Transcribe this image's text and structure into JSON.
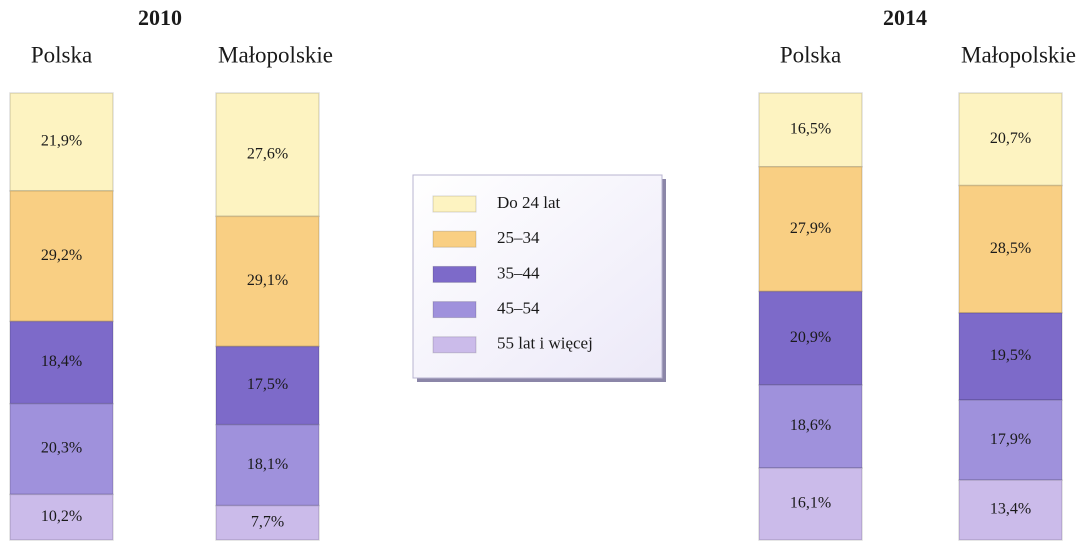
{
  "chart_data": [
    {
      "type": "bar",
      "stacked": true,
      "title": "2010",
      "categories": [
        "Polska",
        "Małopolskie"
      ],
      "series": [
        {
          "name": "Do 24 lat",
          "color": "#fdf3c1",
          "values": [
            21.9,
            27.6
          ],
          "value_labels": [
            "21,9%",
            "27,6%"
          ]
        },
        {
          "name": "25–34",
          "color": "#f9cf83",
          "values": [
            29.2,
            29.1
          ],
          "value_labels": [
            "29,2%",
            "29,1%"
          ]
        },
        {
          "name": "35–44",
          "color": "#7d6ac9",
          "values": [
            18.4,
            17.5
          ],
          "value_labels": [
            "18,4%",
            "17,5%"
          ]
        },
        {
          "name": "45–54",
          "color": "#9f91dc",
          "values": [
            20.3,
            18.1
          ],
          "value_labels": [
            "20,3%",
            "18,1%"
          ]
        },
        {
          "name": "55 lat i więcej",
          "color": "#cbbbea",
          "values": [
            10.2,
            7.7
          ],
          "value_labels": [
            "10,2%",
            "7,7%"
          ]
        }
      ]
    },
    {
      "type": "bar",
      "stacked": true,
      "title": "2014",
      "categories": [
        "Polska",
        "Małopolskie"
      ],
      "series": [
        {
          "name": "Do 24 lat",
          "color": "#fdf3c1",
          "values": [
            16.5,
            20.7
          ],
          "value_labels": [
            "16,5%",
            "20,7%"
          ]
        },
        {
          "name": "25–34",
          "color": "#f9cf83",
          "values": [
            27.9,
            28.5
          ],
          "value_labels": [
            "27,9%",
            "28,5%"
          ]
        },
        {
          "name": "35–44",
          "color": "#7d6ac9",
          "values": [
            20.9,
            19.5
          ],
          "value_labels": [
            "20,9%",
            "19,5%"
          ]
        },
        {
          "name": "45–54",
          "color": "#9f91dc",
          "values": [
            18.6,
            17.9
          ],
          "value_labels": [
            "18,6%",
            "17,9%"
          ]
        },
        {
          "name": "55 lat i więcej",
          "color": "#cbbbea",
          "values": [
            16.1,
            13.4
          ],
          "value_labels": [
            "16,1%",
            "13,4%"
          ]
        }
      ]
    }
  ]
}
